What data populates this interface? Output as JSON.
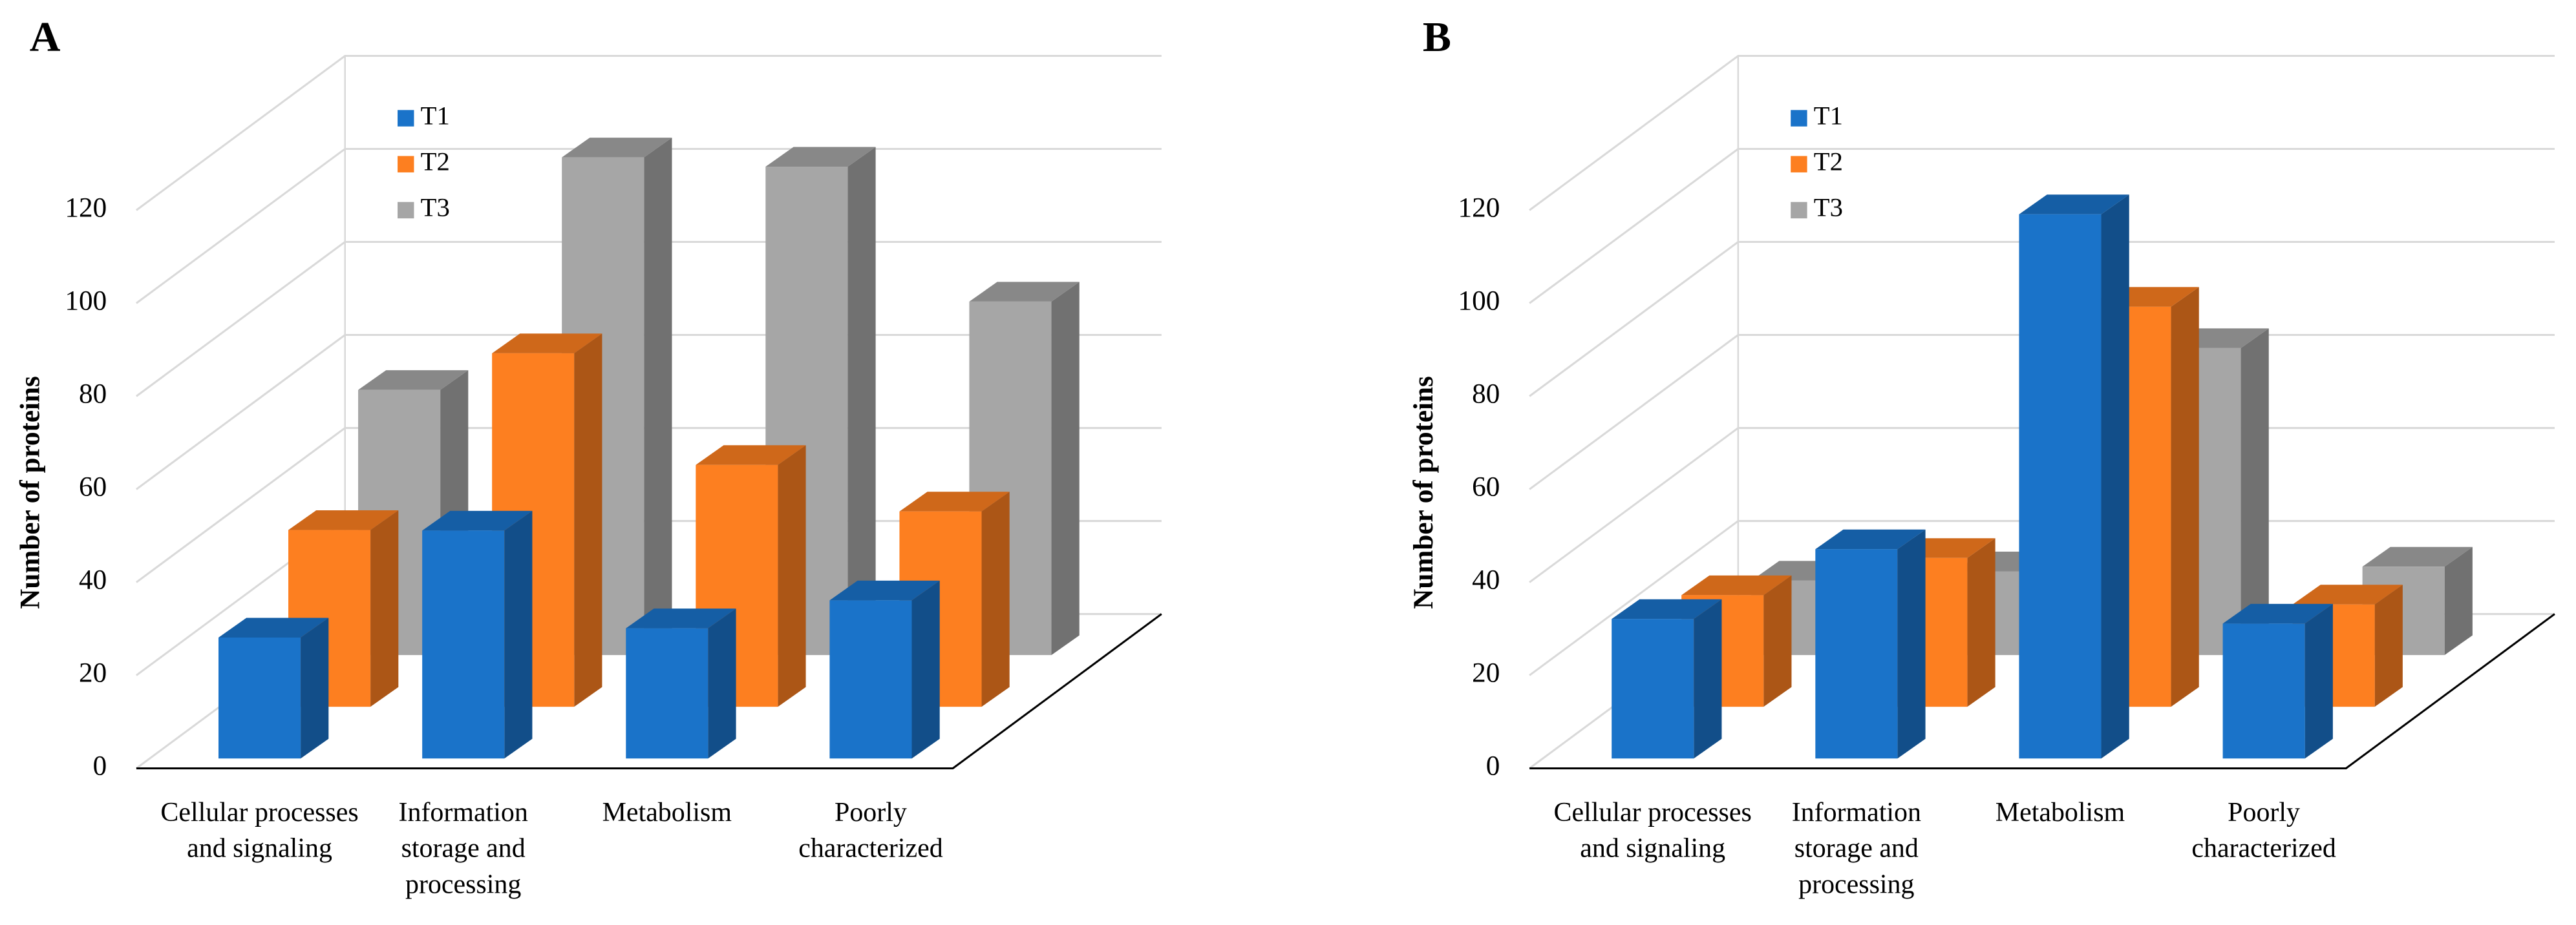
{
  "chart_data": [
    {
      "type": "bar3d",
      "panel_label": "A",
      "ylabel": "Number of proteins",
      "categories": [
        "Cellular processes and signaling",
        "Information storage and processing",
        "Metabolism",
        "Poorly characterized"
      ],
      "series": [
        {
          "name": "T1",
          "color": "#1a73c9",
          "values": [
            26,
            49,
            28,
            34
          ]
        },
        {
          "name": "T2",
          "color": "#fd7f20",
          "values": [
            38,
            76,
            52,
            42
          ]
        },
        {
          "name": "T3",
          "color": "#a6a6a6",
          "values": [
            57,
            107,
            105,
            76
          ]
        }
      ],
      "ylim": [
        0,
        120
      ],
      "yticks": [
        0,
        20,
        40,
        60,
        80,
        100,
        120
      ],
      "grid": true,
      "legend": "top-left"
    },
    {
      "type": "bar3d",
      "panel_label": "B",
      "ylabel": "Number of proteins",
      "categories": [
        "Cellular processes and signaling",
        "Information storage and processing",
        "Metabolism",
        "Poorly characterized"
      ],
      "series": [
        {
          "name": "T1",
          "color": "#1a73c9",
          "values": [
            30,
            45,
            117,
            29
          ]
        },
        {
          "name": "T2",
          "color": "#fd7f20",
          "values": [
            24,
            32,
            86,
            22
          ]
        },
        {
          "name": "T3",
          "color": "#a6a6a6",
          "values": [
            16,
            18,
            66,
            19
          ]
        }
      ],
      "ylim": [
        0,
        120
      ],
      "yticks": [
        0,
        20,
        40,
        60,
        80,
        100,
        120
      ],
      "grid": true,
      "legend": "top-left"
    }
  ]
}
